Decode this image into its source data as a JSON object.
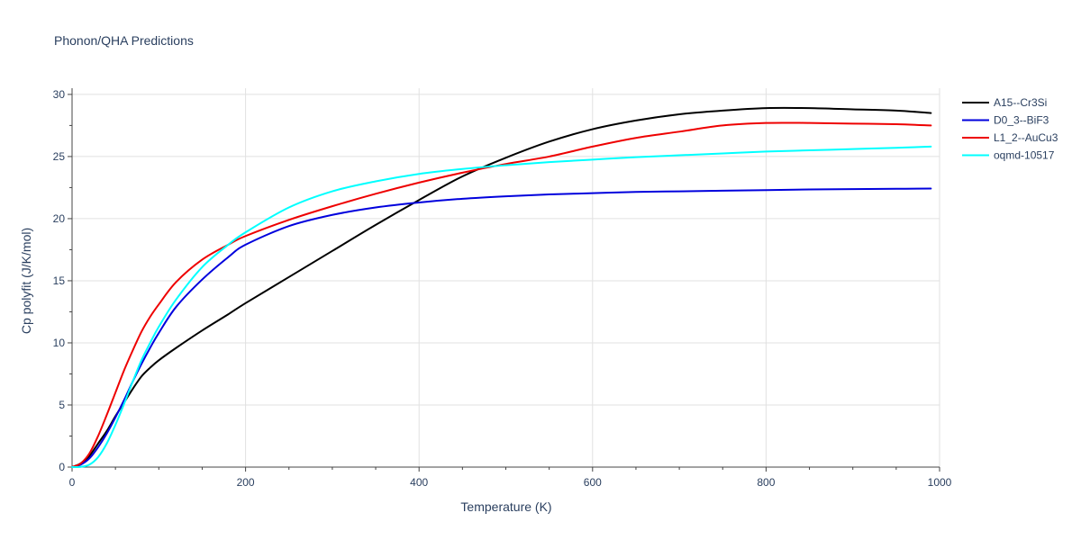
{
  "chart_data": {
    "type": "line",
    "title": "Phonon/QHA Predictions",
    "xlabel": "Temperature (K)",
    "ylabel": "Cp polyfit (J/K/mol)",
    "xlim": [
      0,
      1000
    ],
    "ylim": [
      0,
      30.5
    ],
    "xticks": [
      0,
      200,
      400,
      600,
      800,
      1000
    ],
    "xtick_labels": [
      "0",
      "200",
      "400",
      "600",
      "800",
      "1000"
    ],
    "yticks": [
      0,
      5,
      10,
      15,
      20,
      25,
      30
    ],
    "ytick_labels": [
      "0",
      "5",
      "10",
      "15",
      "20",
      "25",
      "30"
    ],
    "grid": true,
    "legend_position": "top-right",
    "series": [
      {
        "name": "A15--Cr3Si",
        "color": "#000000",
        "x": [
          0,
          10,
          20,
          30,
          40,
          50,
          60,
          70,
          80,
          90,
          100,
          120,
          150,
          180,
          200,
          250,
          300,
          350,
          400,
          450,
          500,
          550,
          600,
          650,
          700,
          750,
          800,
          850,
          900,
          950,
          990
        ],
        "y": [
          0,
          0.3,
          0.9,
          1.9,
          2.9,
          4.1,
          5.2,
          6.3,
          7.3,
          8.0,
          8.6,
          9.6,
          11.0,
          12.3,
          13.2,
          15.3,
          17.4,
          19.5,
          21.5,
          23.4,
          24.9,
          26.2,
          27.2,
          27.9,
          28.4,
          28.7,
          28.9,
          28.9,
          28.8,
          28.7,
          28.5
        ]
      },
      {
        "name": "D0_3--BiF3",
        "color": "#0000dd",
        "x": [
          0,
          10,
          20,
          30,
          40,
          50,
          60,
          70,
          80,
          90,
          100,
          120,
          150,
          180,
          200,
          250,
          300,
          350,
          400,
          450,
          500,
          550,
          600,
          650,
          700,
          750,
          800,
          850,
          900,
          950,
          990
        ],
        "y": [
          0,
          0.2,
          0.7,
          1.6,
          2.7,
          4.0,
          5.4,
          6.9,
          8.3,
          9.6,
          10.8,
          12.9,
          15.1,
          16.9,
          17.9,
          19.4,
          20.3,
          20.9,
          21.3,
          21.6,
          21.8,
          21.95,
          22.05,
          22.15,
          22.2,
          22.25,
          22.3,
          22.35,
          22.38,
          22.4,
          22.42
        ]
      },
      {
        "name": "L1_2--AuCu3",
        "color": "#ee0000",
        "x": [
          0,
          10,
          20,
          30,
          40,
          50,
          60,
          70,
          80,
          90,
          100,
          120,
          150,
          180,
          200,
          250,
          300,
          350,
          400,
          450,
          500,
          550,
          600,
          650,
          700,
          750,
          800,
          850,
          900,
          950,
          990
        ],
        "y": [
          0,
          0.3,
          1.1,
          2.5,
          4.2,
          6.0,
          7.8,
          9.4,
          10.9,
          12.1,
          13.1,
          14.9,
          16.7,
          17.9,
          18.6,
          19.9,
          21.0,
          22.0,
          22.9,
          23.7,
          24.4,
          25.0,
          25.8,
          26.5,
          27.0,
          27.5,
          27.7,
          27.7,
          27.65,
          27.6,
          27.5
        ]
      },
      {
        "name": "oqmd-10517",
        "color": "#00ffff",
        "x": [
          0,
          10,
          20,
          30,
          40,
          50,
          60,
          70,
          80,
          90,
          100,
          120,
          150,
          180,
          200,
          250,
          300,
          350,
          400,
          450,
          500,
          550,
          600,
          650,
          700,
          750,
          800,
          850,
          900,
          950,
          990
        ],
        "y": [
          0,
          0.02,
          0.2,
          0.8,
          1.9,
          3.4,
          5.1,
          6.9,
          8.6,
          10.0,
          11.3,
          13.5,
          16.1,
          17.9,
          18.9,
          20.9,
          22.2,
          23.0,
          23.6,
          24.0,
          24.3,
          24.55,
          24.75,
          24.95,
          25.1,
          25.25,
          25.4,
          25.5,
          25.6,
          25.7,
          25.8
        ]
      }
    ]
  }
}
